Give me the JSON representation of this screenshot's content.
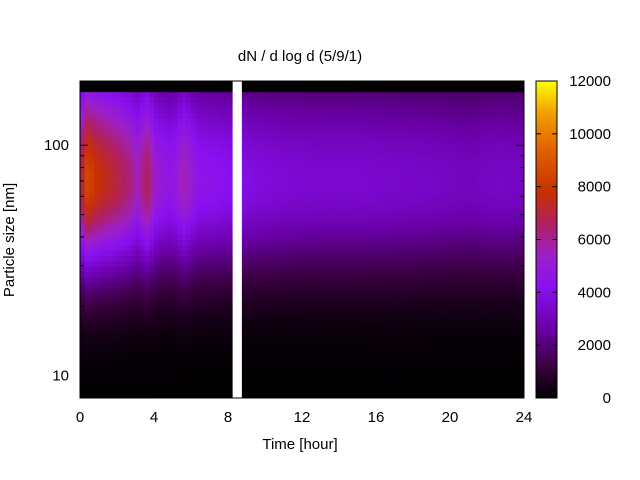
{
  "chart_data": {
    "type": "heatmap",
    "title": "dN / d log d (5/9/1)",
    "xlabel": "Time [hour]",
    "ylabel": "Particle size [nm]",
    "x_range": [
      0,
      24
    ],
    "x_ticks": [
      0,
      4,
      8,
      12,
      16,
      20,
      24
    ],
    "x_tick_labels": [
      "0",
      "4",
      "8",
      "12",
      "16",
      "20",
      "24"
    ],
    "y_scale": "log",
    "y_range": [
      8,
      190
    ],
    "y_ticks": [
      10,
      100
    ],
    "y_tick_labels": [
      "10",
      "100"
    ],
    "colorbar": {
      "range": [
        0,
        12000
      ],
      "ticks": [
        0,
        2000,
        4000,
        6000,
        8000,
        10000,
        12000
      ],
      "tick_labels": [
        "0",
        "2000",
        "4000",
        "6000",
        "8000",
        "10000",
        "12000"
      ],
      "colormap": "gnuplot (black-purple-red-orange-yellow)"
    },
    "data_gap_hours": [
      8.3,
      8.7
    ],
    "mode_size_nm": 70,
    "concentration_profile": {
      "hours": [
        0,
        0.4,
        1.0,
        1.6,
        2.1,
        2.7,
        3.1,
        3.6,
        4.2,
        5.0,
        5.6,
        6.4,
        7.2,
        8.0,
        9.5,
        11,
        13,
        15,
        17,
        19,
        21,
        22.5,
        24
      ],
      "peak_dN_dlogd": [
        6500,
        8600,
        7700,
        7300,
        6900,
        6300,
        5500,
        6700,
        5000,
        4600,
        5700,
        4500,
        4400,
        4200,
        3800,
        3600,
        3500,
        3500,
        3400,
        3300,
        3100,
        3300,
        3200
      ]
    }
  }
}
